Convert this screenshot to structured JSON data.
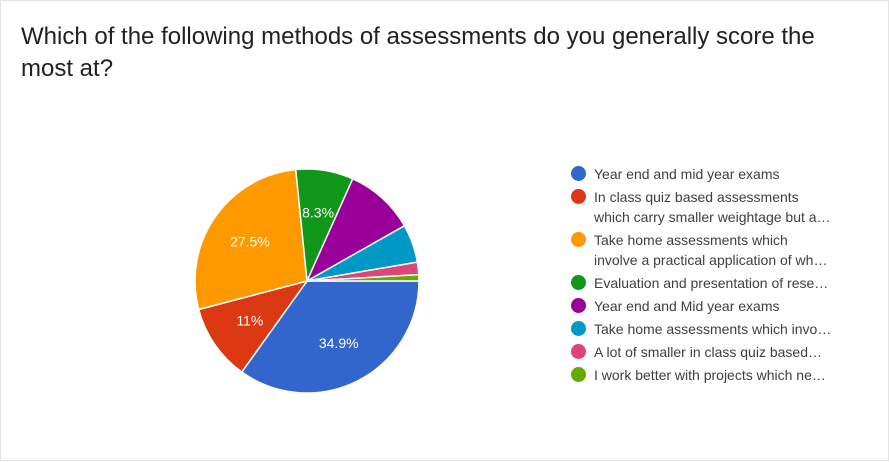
{
  "chart_data": {
    "type": "pie",
    "title": "Which of the following methods of assessments do you generally score the most at?",
    "slices": [
      {
        "label_lines": [
          "Year end and mid year exams"
        ],
        "value": 34.9,
        "color": "#3366cc",
        "data_label": "34.9%"
      },
      {
        "label_lines": [
          "In class quiz based assessments",
          "which carry smaller weightage but a…"
        ],
        "value": 11.0,
        "color": "#dc3912",
        "data_label": "11%"
      },
      {
        "label_lines": [
          "Take home assessments which",
          "involve a practical application of wh…"
        ],
        "value": 27.5,
        "color": "#ff9900",
        "data_label": "27.5%"
      },
      {
        "label_lines": [
          "Evaluation and presentation of rese…"
        ],
        "value": 8.3,
        "color": "#109618",
        "data_label": "8.3%"
      },
      {
        "label_lines": [
          "Year end and Mid year exams"
        ],
        "value": 10.1,
        "color": "#990099",
        "data_label": ""
      },
      {
        "label_lines": [
          "Take home assessments which invo…"
        ],
        "value": 5.5,
        "color": "#0099c6",
        "data_label": ""
      },
      {
        "label_lines": [
          "A lot of smaller in class quiz based…"
        ],
        "value": 1.8,
        "color": "#dd4477",
        "data_label": ""
      },
      {
        "label_lines": [
          "I work better with projects which ne…"
        ],
        "value": 0.9,
        "color": "#66aa00",
        "data_label": ""
      }
    ],
    "legend_position": "right"
  }
}
